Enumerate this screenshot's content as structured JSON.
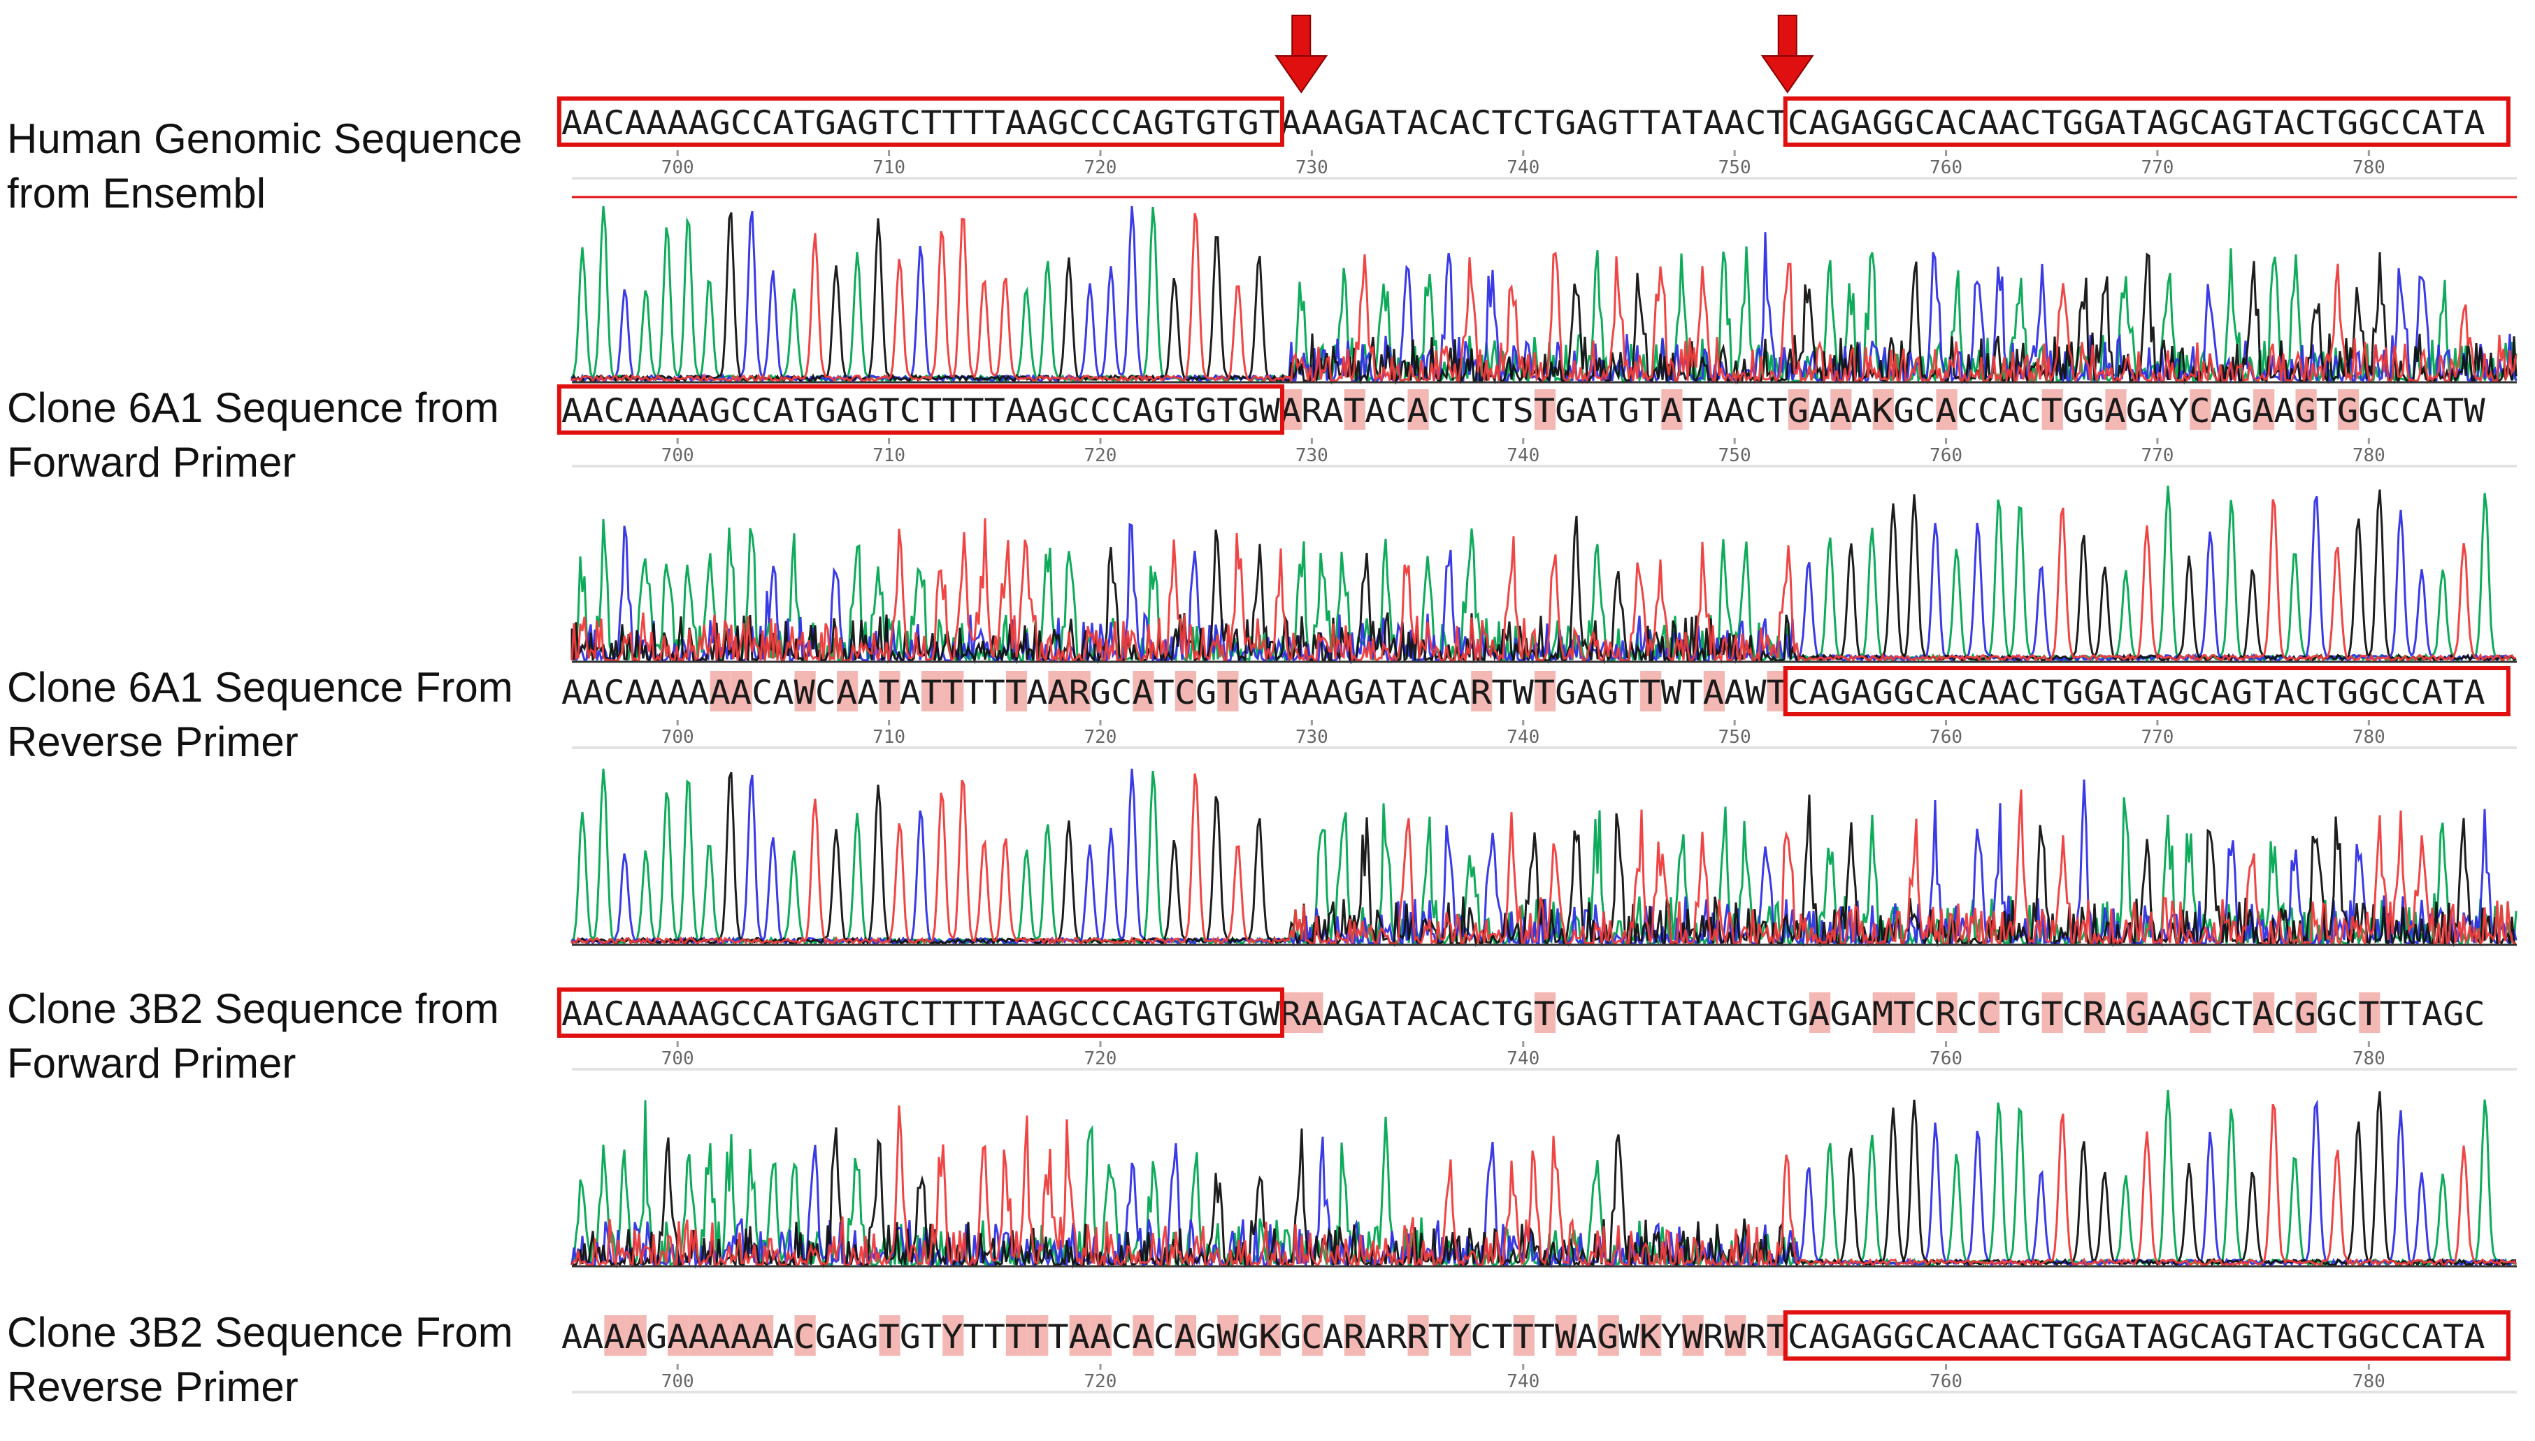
{
  "colors": {
    "A": "#00a651",
    "C": "#2f2fe6",
    "G": "#111111",
    "T": "#ef3b3b",
    "box": "#e01010",
    "highlight": "#f4b8b4",
    "arrow": "#e01010",
    "axis": "#9a9a9a"
  },
  "arrows": [
    729,
    752
  ],
  "panels": [
    {
      "id": "genomic",
      "label_lines": [
        "Human Genomic Sequence",
        "from Ensembl"
      ],
      "sequence": "AACAAAAGCCATGAGTCTTTTAAGCCCAGTGTGTAAAGATACACTCTGAGTTATAACTCAGAGGCACAACTGGATAGCAGTACTGGCCATA",
      "seq_start": 695,
      "highlight_positions": [],
      "boxes": [
        [
          695,
          728
        ],
        [
          753,
          786
        ]
      ],
      "ticks": [
        700,
        710,
        720,
        730,
        740,
        750,
        760,
        770,
        780
      ],
      "chromatogram": "none"
    },
    {
      "id": "6a1-forward",
      "label_lines": [
        "Clone 6A1 Sequence from",
        "Forward Primer"
      ],
      "sequence": "AACAAAAGCCATGAGTCTTTTAAGCCCAGTGTGWARATACACTCTSTGATGTATAACTGAAAKGCACCACTGGAGAYCAGAAGTGGCCATW",
      "seq_start": 695,
      "highlight_positions": [
        729,
        732,
        735,
        741,
        747,
        753,
        755,
        757,
        760,
        765,
        768,
        772,
        775,
        777,
        779
      ],
      "boxes": [
        [
          695,
          728
        ]
      ],
      "ticks": [
        700,
        710,
        720,
        730,
        740,
        750,
        760,
        770,
        780
      ],
      "chromatogram": "clean-then-mixed"
    },
    {
      "id": "6a1-reverse",
      "label_lines": [
        "Clone 6A1 Sequence From",
        "Reverse Primer"
      ],
      "sequence": "AACAAAAAACAWCAATATTTTTAARGCATCGTGTAAAGATACARTWTGAGTTWTAAWTCAGAGGCACAACTGGATAGCAGTACTGGCCATA",
      "seq_start": 695,
      "highlight_positions": [
        702,
        703,
        706,
        708,
        710,
        712,
        713,
        716,
        718,
        719,
        722,
        724,
        726,
        738,
        741,
        746,
        749,
        752
      ],
      "boxes": [
        [
          753,
          786
        ]
      ],
      "ticks": [
        700,
        710,
        720,
        730,
        740,
        750,
        760,
        770,
        780
      ],
      "chromatogram": "mixed-then-clean"
    },
    {
      "id": "3b2-forward",
      "label_lines": [
        "Clone 3B2 Sequence from",
        "Forward Primer"
      ],
      "sequence": "AACAAAAGCCATGAGTCTTTTAAGCCCAGTGTGWRAAGATACACTGTGAGTTATAACTGAGAMTCRCCTGTCRAGAAGCTACGGCTTTAGC",
      "seq_start": 695,
      "highlight_positions": [
        729,
        730,
        741,
        754,
        757,
        758,
        760,
        762,
        765,
        767,
        769,
        772,
        775,
        777,
        780
      ],
      "boxes": [
        [
          695,
          728
        ]
      ],
      "ticks": [
        700,
        720,
        740,
        760,
        780
      ],
      "chromatogram": "clean-then-mixed"
    },
    {
      "id": "3b2-reverse",
      "label_lines": [
        "Clone 3B2 Sequence From",
        "Reverse Primer"
      ],
      "sequence": "AAAAGAAAAAACGAGTGTYTTTTTAACACAGWGKGCARARRTYCTTTWAGWKYWRWRTCAGAGGCACAACTGGATAGCAGTACTGGCCATA",
      "seq_start": 695,
      "highlight_positions": [
        697,
        698,
        700,
        701,
        702,
        703,
        704,
        706,
        710,
        713,
        716,
        717,
        719,
        720,
        722,
        724,
        726,
        728,
        730,
        732,
        735,
        737,
        740,
        742,
        744,
        746,
        748,
        750,
        752
      ],
      "boxes": [
        [
          753,
          786
        ]
      ],
      "ticks": [
        700,
        720,
        740,
        760,
        780
      ],
      "chromatogram": "mixed-then-clean"
    }
  ]
}
